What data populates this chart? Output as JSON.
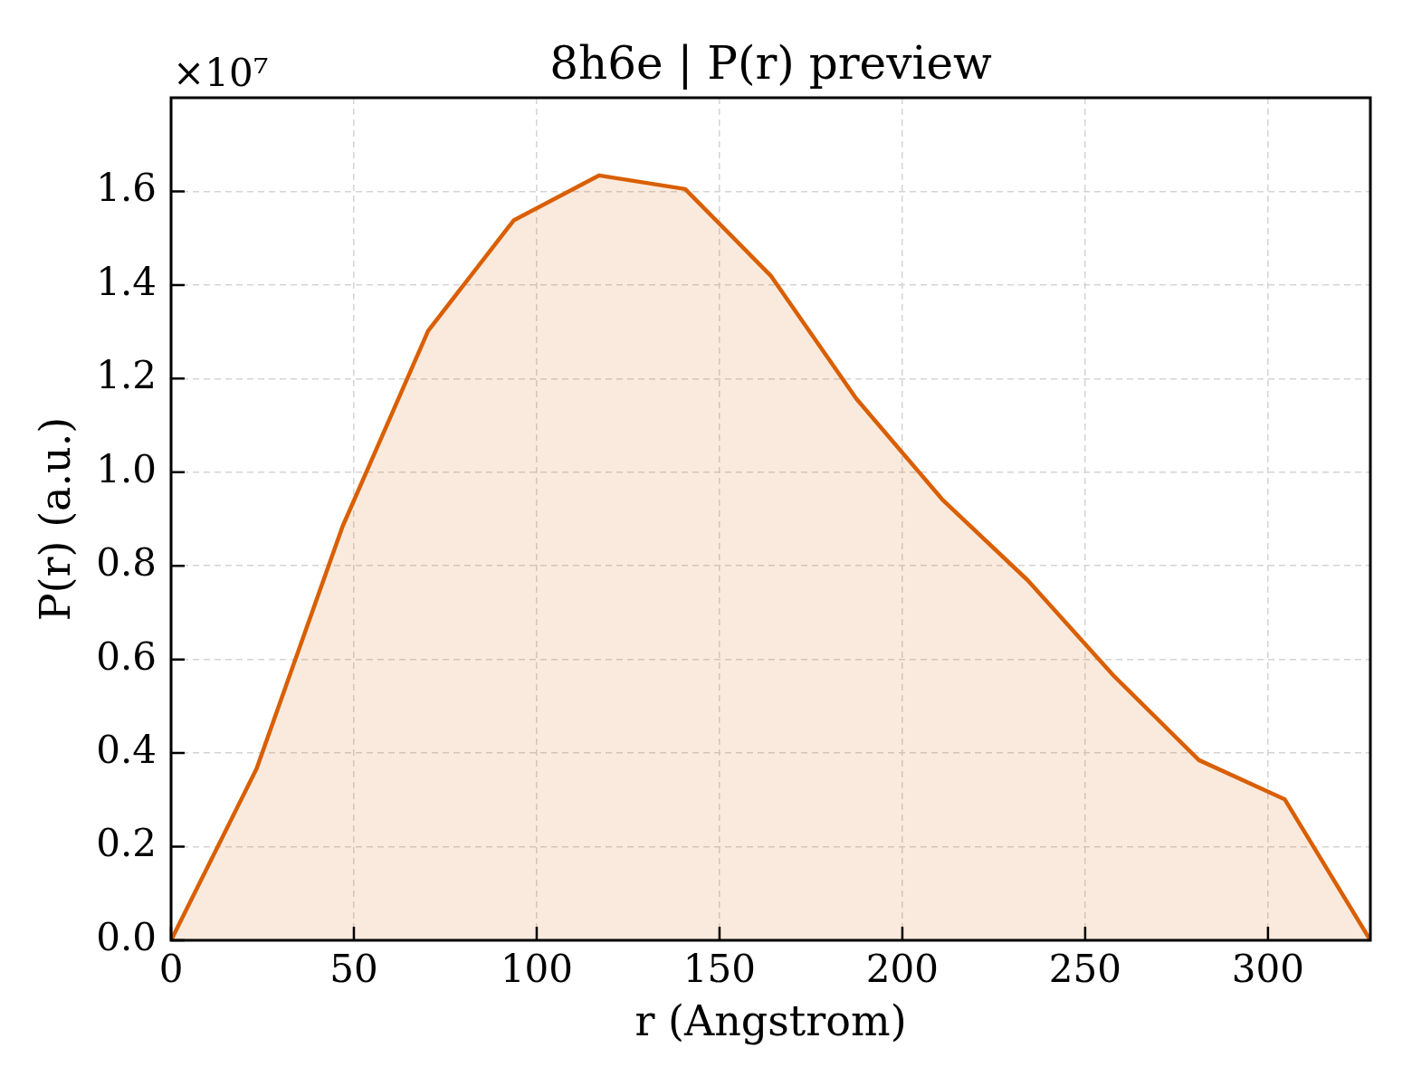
{
  "chart_data": {
    "type": "area",
    "title": "8h6e | P(r) preview",
    "xlabel": "r (Angstrom)",
    "ylabel": "P(r) (a.u.)",
    "annotations": [
      "×10⁷"
    ],
    "x": [
      0,
      23.4,
      46.9,
      70.3,
      93.7,
      117.1,
      140.6,
      164,
      187.4,
      210.9,
      234.3,
      257.7,
      281.1,
      304.6,
      328
    ],
    "series": [
      {
        "color": "#d95f02",
        "values": [
          0,
          0.367,
          0.884,
          1.302,
          1.538,
          1.634,
          1.605,
          1.42,
          1.157,
          0.942,
          0.769,
          0.566,
          0.385,
          0.301,
          0
        ]
      }
    ],
    "xlim": [
      0,
      328
    ],
    "xticks": [
      0,
      50,
      100,
      150,
      200,
      250,
      300
    ],
    "ylim": [
      0,
      1.8
    ],
    "yticks": [
      {
        "value": 0,
        "label": "0.0"
      },
      0.2,
      0.4,
      0.6,
      0.8,
      {
        "value": 1,
        "label": "1.0"
      },
      1.2,
      1.4,
      1.6
    ],
    "grid": true,
    "legend": false,
    "marker": "none",
    "line_style": "solid"
  }
}
